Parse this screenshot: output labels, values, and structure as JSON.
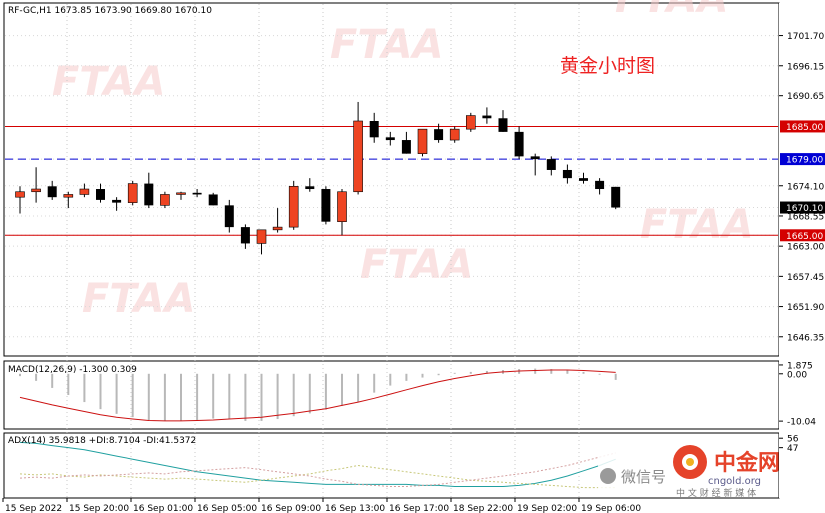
{
  "chart_data": [
    {
      "type": "candlestick",
      "header": {
        "symbol": "RF-GC,H1",
        "open": "1673.85",
        "high": "1673.90",
        "low": "1669.80",
        "close": "1670.10"
      },
      "title": "黄金小时图",
      "ylim": [
        1643.0,
        1707.5
      ],
      "y_ticks": [
        "1701.70",
        "1696.15",
        "1690.65",
        "1685.00",
        "1679.00",
        "1674.10",
        "1670.10",
        "1668.55",
        "1665.00",
        "1663.00",
        "1657.45",
        "1651.90",
        "1646.35"
      ],
      "levels": [
        {
          "value": 1685.0,
          "label": "1685.00",
          "color": "#d40000",
          "style": "solid"
        },
        {
          "value": 1679.0,
          "label": "1679.00",
          "color": "#0000d4",
          "style": "dashed"
        },
        {
          "value": 1665.0,
          "label": "1665.00",
          "color": "#d40000",
          "style": "solid"
        }
      ],
      "current_price": "1670.10",
      "candles": [
        {
          "o": 1672.0,
          "h": 1674.0,
          "l": 1669.0,
          "c": 1673.0
        },
        {
          "o": 1673.0,
          "h": 1677.5,
          "l": 1671.0,
          "c": 1673.5
        },
        {
          "o": 1674.0,
          "h": 1675.0,
          "l": 1671.5,
          "c": 1672.0
        },
        {
          "o": 1672.0,
          "h": 1673.0,
          "l": 1670.0,
          "c": 1672.5
        },
        {
          "o": 1672.5,
          "h": 1674.5,
          "l": 1672.0,
          "c": 1673.5
        },
        {
          "o": 1673.5,
          "h": 1674.5,
          "l": 1671.0,
          "c": 1671.5
        },
        {
          "o": 1671.5,
          "h": 1672.0,
          "l": 1669.5,
          "c": 1671.0
        },
        {
          "o": 1671.0,
          "h": 1675.0,
          "l": 1670.5,
          "c": 1674.5
        },
        {
          "o": 1674.5,
          "h": 1676.5,
          "l": 1670.0,
          "c": 1670.5
        },
        {
          "o": 1670.5,
          "h": 1673.0,
          "l": 1670.0,
          "c": 1672.5
        },
        {
          "o": 1672.5,
          "h": 1673.0,
          "l": 1671.5,
          "c": 1672.8
        },
        {
          "o": 1672.8,
          "h": 1673.5,
          "l": 1672.0,
          "c": 1672.5
        },
        {
          "o": 1672.5,
          "h": 1672.8,
          "l": 1670.5,
          "c": 1670.5
        },
        {
          "o": 1670.5,
          "h": 1671.5,
          "l": 1665.5,
          "c": 1666.5
        },
        {
          "o": 1666.5,
          "h": 1667.0,
          "l": 1662.5,
          "c": 1663.5
        },
        {
          "o": 1663.5,
          "h": 1666.0,
          "l": 1661.5,
          "c": 1666.0
        },
        {
          "o": 1666.0,
          "h": 1670.0,
          "l": 1665.5,
          "c": 1666.5
        },
        {
          "o": 1666.5,
          "h": 1675.0,
          "l": 1666.0,
          "c": 1674.0
        },
        {
          "o": 1674.0,
          "h": 1675.5,
          "l": 1673.0,
          "c": 1673.5
        },
        {
          "o": 1673.5,
          "h": 1674.0,
          "l": 1667.0,
          "c": 1667.5
        },
        {
          "o": 1667.5,
          "h": 1673.5,
          "l": 1665.0,
          "c": 1673.0
        },
        {
          "o": 1673.0,
          "h": 1689.5,
          "l": 1672.5,
          "c": 1686.0
        },
        {
          "o": 1686.0,
          "h": 1687.5,
          "l": 1682.0,
          "c": 1683.0
        },
        {
          "o": 1683.0,
          "h": 1684.0,
          "l": 1681.5,
          "c": 1682.5
        },
        {
          "o": 1682.5,
          "h": 1684.0,
          "l": 1680.0,
          "c": 1680.0
        },
        {
          "o": 1680.0,
          "h": 1684.5,
          "l": 1679.5,
          "c": 1684.5
        },
        {
          "o": 1684.5,
          "h": 1685.5,
          "l": 1682.0,
          "c": 1682.5
        },
        {
          "o": 1682.5,
          "h": 1685.0,
          "l": 1682.0,
          "c": 1684.5
        },
        {
          "o": 1684.5,
          "h": 1687.5,
          "l": 1684.0,
          "c": 1687.0
        },
        {
          "o": 1687.0,
          "h": 1688.5,
          "l": 1685.5,
          "c": 1686.5
        },
        {
          "o": 1686.5,
          "h": 1688.0,
          "l": 1684.0,
          "c": 1684.0
        },
        {
          "o": 1684.0,
          "h": 1685.0,
          "l": 1679.0,
          "c": 1679.5
        },
        {
          "o": 1679.5,
          "h": 1680.0,
          "l": 1676.0,
          "c": 1679.0
        },
        {
          "o": 1679.0,
          "h": 1679.5,
          "l": 1676.0,
          "c": 1677.0
        },
        {
          "o": 1677.0,
          "h": 1678.0,
          "l": 1674.5,
          "c": 1675.5
        },
        {
          "o": 1675.5,
          "h": 1676.5,
          "l": 1674.5,
          "c": 1675.0
        },
        {
          "o": 1675.0,
          "h": 1675.5,
          "l": 1672.5,
          "c": 1673.5
        },
        {
          "o": 1673.9,
          "h": 1673.9,
          "l": 1669.8,
          "c": 1670.1
        }
      ],
      "x_labels": [
        "15 Sep 2022",
        "15 Sep 20:00",
        "16 Sep 01:00",
        "16 Sep 05:00",
        "16 Sep 09:00",
        "16 Sep 13:00",
        "16 Sep 17:00",
        "18 Sep 22:00",
        "19 Sep 02:00",
        "19 Sep 06:00"
      ]
    },
    {
      "type": "bar",
      "indicator_label": "MACD(12,26,9) -1.300 0.309",
      "ylim": [
        -11.5,
        2.5
      ],
      "y_ticks": [
        "1.875",
        "0.00",
        "-10.04"
      ],
      "histogram": [
        -0.5,
        -1.5,
        -3.0,
        -4.5,
        -6.0,
        -7.5,
        -8.5,
        -9.2,
        -9.8,
        -10.0,
        -10.0,
        -9.8,
        -9.5,
        -9.6,
        -10.0,
        -10.0,
        -9.6,
        -9.0,
        -8.4,
        -7.6,
        -6.8,
        -6.0,
        -4.0,
        -2.5,
        -1.5,
        -0.8,
        -0.3,
        0.2,
        0.4,
        0.6,
        0.8,
        1.0,
        1.1,
        1.0,
        0.8,
        0.4,
        -0.2,
        -1.3
      ],
      "signal": [
        -5.0,
        -5.8,
        -6.6,
        -7.3,
        -8.0,
        -8.7,
        -9.2,
        -9.6,
        -9.9,
        -10.0,
        -10.0,
        -9.9,
        -9.8,
        -9.6,
        -9.4,
        -9.2,
        -8.8,
        -8.4,
        -7.9,
        -7.4,
        -6.7,
        -6.0,
        -5.2,
        -4.3,
        -3.4,
        -2.5,
        -1.7,
        -1.0,
        -0.4,
        0.1,
        0.4,
        0.6,
        0.7,
        0.8,
        0.8,
        0.7,
        0.5,
        0.3
      ]
    },
    {
      "type": "line",
      "indicator_label": "ADX(14) 35.9818 +DI:8.7104 -DI:41.5372",
      "ylim": [
        0,
        60
      ],
      "y_ticks": [
        "56",
        "47"
      ],
      "series": [
        {
          "key": "adx",
          "color": "#20a0a0",
          "values": [
            52,
            51,
            49,
            47,
            45,
            42,
            39,
            36,
            33,
            30,
            27,
            24,
            22,
            20,
            18,
            16,
            15,
            14,
            13,
            12,
            12,
            12,
            12,
            12,
            12,
            11,
            11,
            10,
            10,
            10,
            10,
            11,
            13,
            16,
            20,
            25,
            30,
            36
          ]
        },
        {
          "key": "plus_di",
          "color": "#c8c87a",
          "values": [
            22,
            21,
            22,
            20,
            19,
            21,
            20,
            19,
            18,
            17,
            18,
            17,
            16,
            15,
            14,
            16,
            18,
            20,
            22,
            25,
            27,
            30,
            28,
            26,
            24,
            22,
            20,
            18,
            16,
            15,
            14,
            13,
            12,
            11,
            10,
            9,
            9,
            9
          ]
        },
        {
          "key": "minus_di",
          "color": "#d4a0a0",
          "values": [
            18,
            19,
            18,
            20,
            21,
            20,
            21,
            22,
            23,
            22,
            24,
            25,
            26,
            27,
            28,
            26,
            24,
            22,
            20,
            17,
            15,
            12,
            11,
            10,
            10,
            11,
            12,
            14,
            16,
            18,
            20,
            22,
            24,
            27,
            30,
            34,
            38,
            42
          ]
        }
      ]
    }
  ],
  "watermark": "FTAA",
  "badge": {
    "wechat": "微信号",
    "brand": "中金网",
    "site": "cngold.org",
    "tagline": "中 文 财 经 新 媒 体"
  }
}
